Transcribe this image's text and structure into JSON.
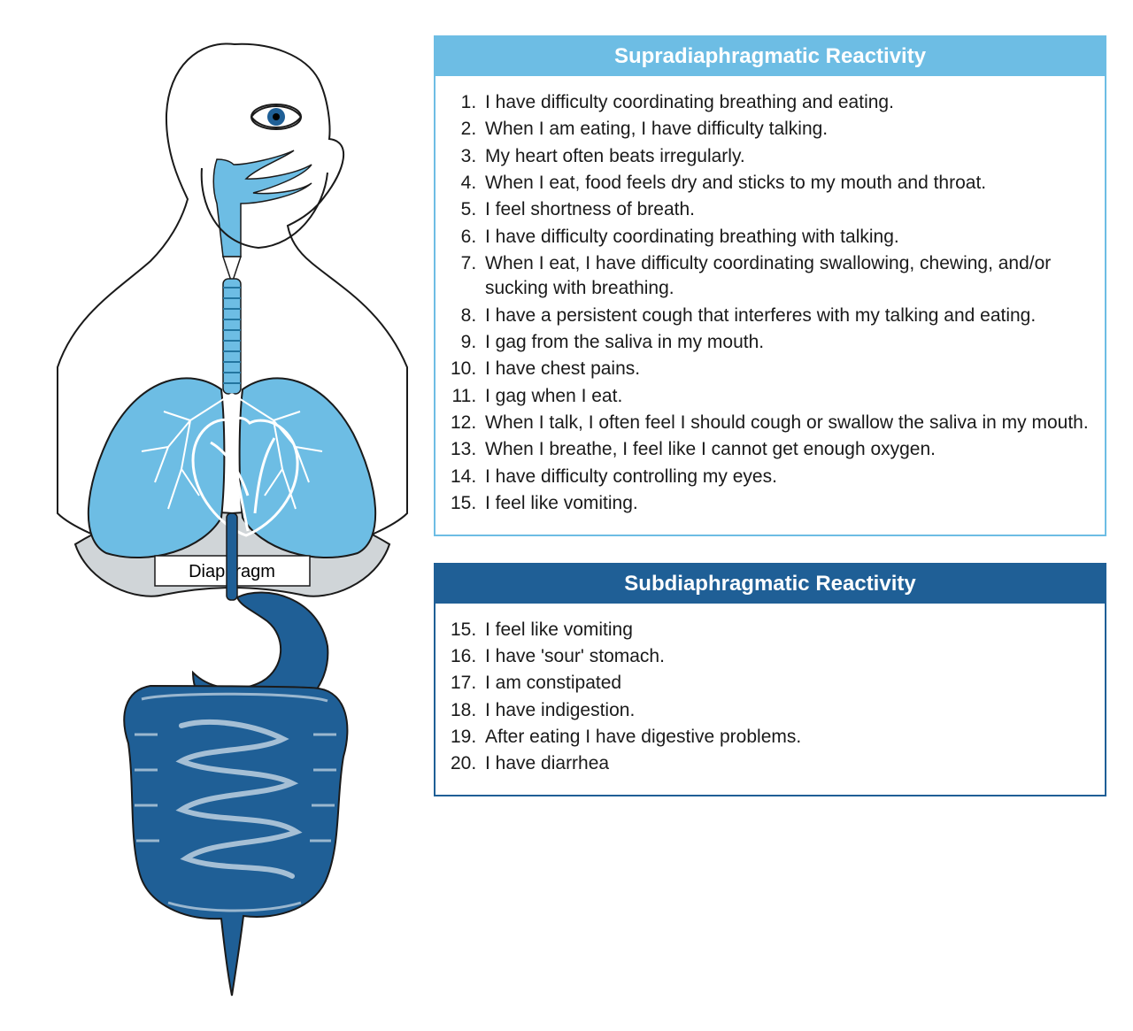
{
  "anatomy": {
    "label_text": "Diaphragm",
    "label_fontsize": 20,
    "outline_color": "#1a1a1a",
    "outline_width": 2,
    "supra_fill": "#6dbde4",
    "sub_fill": "#1f5f96",
    "diaphragm_fill": "#d0d5d8",
    "bg": "#ffffff",
    "heart_stroke": "#ffffff",
    "eye_iris": "#1f5f96",
    "trachea_ring_stroke": "#23759f"
  },
  "panels": {
    "supra": {
      "title": "Supradiaphragmatic Reactivity",
      "header_bg": "#6dbde4",
      "border_color": "#6dbde4",
      "header_text_color": "#ffffff",
      "header_fontsize": 24,
      "body_fontsize": 21,
      "body_text_color": "#1a1a1a",
      "start": 1,
      "items": [
        "I have difficulty coordinating breathing and eating.",
        "When I am eating, I have difficulty talking.",
        "My heart often beats irregularly.",
        "When I eat, food feels dry and sticks to my mouth and throat.",
        "I feel shortness of breath.",
        "I have difficulty coordinating breathing with talking.",
        "When I eat, I have difficulty coordinating swallowing, chewing, and/or sucking with breathing.",
        "I have a persistent cough that interferes with my talking and eating.",
        "I gag from the saliva in my mouth.",
        "I have chest pains.",
        "I gag when I eat.",
        "When I talk, I often feel I should cough or swallow the saliva in my mouth.",
        "When I breathe, I feel like I cannot get enough oxygen.",
        "I have difficulty controlling my eyes.",
        "I feel like vomiting."
      ]
    },
    "sub": {
      "title": "Subdiaphragmatic Reactivity",
      "header_bg": "#1f5f96",
      "border_color": "#1f5f96",
      "header_text_color": "#ffffff",
      "header_fontsize": 24,
      "body_fontsize": 21,
      "body_text_color": "#1a1a1a",
      "start": 15,
      "items": [
        "I feel like vomiting",
        "I have 'sour' stomach.",
        "I am constipated",
        "I have indigestion.",
        "After eating I have digestive problems.",
        "I have diarrhea"
      ]
    }
  }
}
